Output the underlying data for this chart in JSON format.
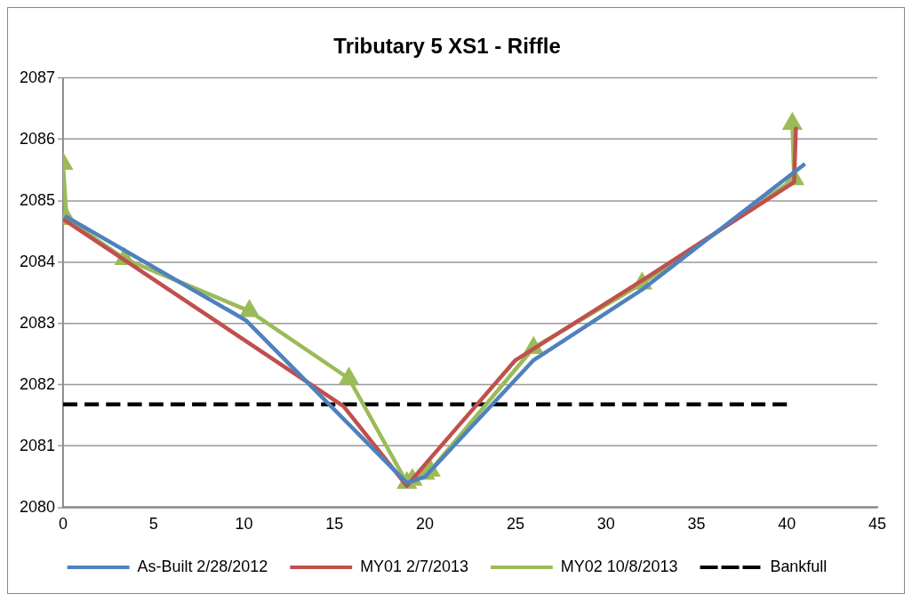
{
  "chart_data": {
    "type": "line",
    "title": "Tributary 5 XS1 - Riffle",
    "xlim": [
      0,
      45
    ],
    "xticks": [
      0,
      5,
      10,
      15,
      20,
      25,
      30,
      35,
      40,
      45
    ],
    "ylim": [
      2080,
      2087
    ],
    "yticks": [
      2080,
      2081,
      2082,
      2083,
      2084,
      2085,
      2086,
      2087
    ],
    "grid": "y",
    "legend": "bottom",
    "series": [
      {
        "name": "As-Built 2/28/2012",
        "color": "#4f81bd",
        "marker": "none",
        "line_style": "solid",
        "x": [
          0.1,
          10.1,
          19,
          20,
          26,
          32,
          41
        ],
        "values": [
          2084.75,
          2083.05,
          2080.4,
          2080.5,
          2082.4,
          2083.55,
          2085.6
        ]
      },
      {
        "name": "MY01 2/7/2013",
        "color": "#c0504d",
        "marker": "none",
        "line_style": "solid",
        "x": [
          0,
          3.3,
          15.5,
          19,
          20,
          25,
          32,
          40.4,
          40.5
        ],
        "values": [
          2084.7,
          2084.05,
          2081.65,
          2080.35,
          2080.7,
          2082.4,
          2083.7,
          2085.3,
          2086.2
        ]
      },
      {
        "name": "MY02 10/8/2013",
        "color": "#9bbb59",
        "marker": "triangle",
        "line_style": "solid",
        "x": [
          0,
          0.2,
          3.4,
          10.3,
          15.8,
          19,
          19.3,
          20,
          20.3,
          26,
          32,
          40.4,
          40.3
        ],
        "values": [
          2085.6,
          2084.7,
          2084.05,
          2083.2,
          2082.1,
          2080.4,
          2080.45,
          2080.55,
          2080.6,
          2082.6,
          2083.65,
          2085.35,
          2086.25
        ]
      },
      {
        "name": "Bankfull",
        "color": "#000000",
        "marker": "none",
        "line_style": "dashed",
        "x": [
          0,
          40
        ],
        "values": [
          2081.68,
          2081.68
        ]
      }
    ]
  }
}
